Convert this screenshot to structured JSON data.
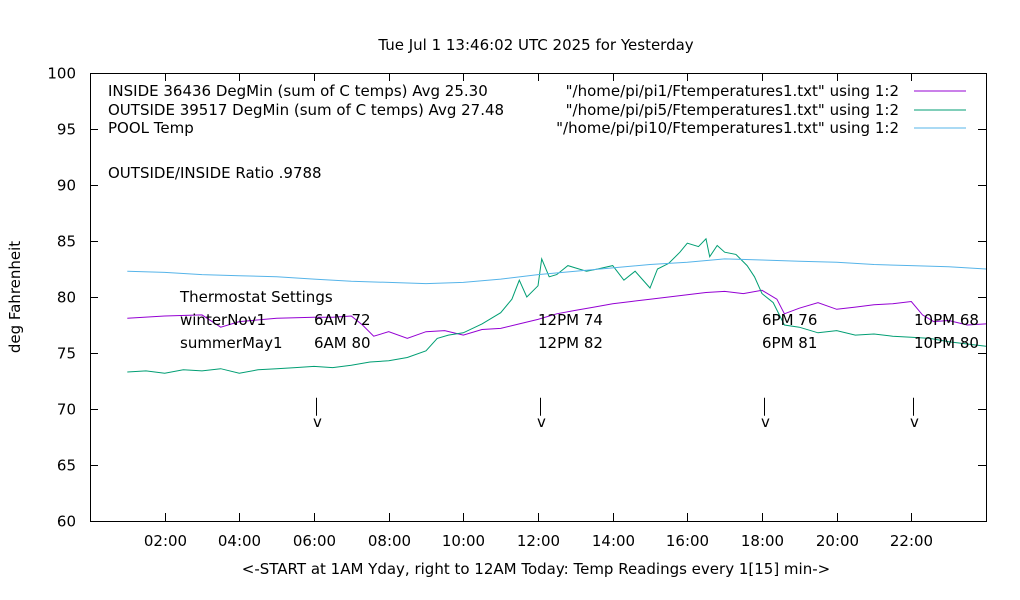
{
  "chart_data": {
    "type": "line",
    "title": "Tue Jul  1 13:46:02 UTC 2025 for Yesterday",
    "xlabel": "<-START at 1AM Yday, right to 12AM Today:  Temp Readings every 1[15] min->",
    "ylabel": "deg Fahrenheit",
    "ylim": [
      60,
      100
    ],
    "xlim": [
      0,
      24
    ],
    "grid": false,
    "legend_position": "top-right",
    "y_ticks": [
      60,
      65,
      70,
      75,
      80,
      85,
      90,
      95,
      100
    ],
    "x_ticks": [
      {
        "x": 2,
        "label": "02:00"
      },
      {
        "x": 4,
        "label": "04:00"
      },
      {
        "x": 6,
        "label": "06:00"
      },
      {
        "x": 8,
        "label": "08:00"
      },
      {
        "x": 10,
        "label": "10:00"
      },
      {
        "x": 12,
        "label": "12:00"
      },
      {
        "x": 14,
        "label": "14:00"
      },
      {
        "x": 16,
        "label": "16:00"
      },
      {
        "x": 18,
        "label": "18:00"
      },
      {
        "x": 20,
        "label": "20:00"
      },
      {
        "x": 22,
        "label": "22:00"
      }
    ],
    "series": [
      {
        "name": "INSIDE 36436 DegMin (sum of C temps) Avg 25.30",
        "legend_file": "\"/home/pi/pi1/Ftemperatures1.txt\" using 1:2",
        "color": "#9400d3",
        "x": [
          1.0,
          2.0,
          3.0,
          3.5,
          4.0,
          5.0,
          6.0,
          6.5,
          7.0,
          7.3,
          7.6,
          8.0,
          8.5,
          9.0,
          9.5,
          10.0,
          10.5,
          11.0,
          11.5,
          12.0,
          12.5,
          13.0,
          13.5,
          14.0,
          14.5,
          15.0,
          15.5,
          16.0,
          16.5,
          17.0,
          17.5,
          18.0,
          18.4,
          18.6,
          19.0,
          19.5,
          20.0,
          20.5,
          21.0,
          21.5,
          22.0,
          22.3,
          22.6,
          23.0,
          23.5,
          24.0
        ],
        "y": [
          78.1,
          78.3,
          78.4,
          77.3,
          77.8,
          78.1,
          78.2,
          78.2,
          78.3,
          77.5,
          76.5,
          76.9,
          76.3,
          76.9,
          77.0,
          76.6,
          77.1,
          77.2,
          77.6,
          78.0,
          78.5,
          78.8,
          79.1,
          79.4,
          79.6,
          79.8,
          80.0,
          80.2,
          80.4,
          80.5,
          80.3,
          80.6,
          79.8,
          78.5,
          79.0,
          79.5,
          78.9,
          79.1,
          79.3,
          79.4,
          79.6,
          78.4,
          77.8,
          77.9,
          77.5,
          77.6
        ]
      },
      {
        "name": "OUTSIDE 39517 DegMin (sum of C temps) Avg 27.48",
        "legend_file": "\"/home/pi/pi5/Ftemperatures1.txt\" using 1:2",
        "color": "#009e73",
        "x": [
          1.0,
          1.5,
          2.0,
          2.5,
          3.0,
          3.5,
          4.0,
          4.5,
          5.0,
          5.5,
          6.0,
          6.5,
          7.0,
          7.5,
          8.0,
          8.5,
          9.0,
          9.3,
          9.6,
          10.0,
          10.5,
          11.0,
          11.3,
          11.5,
          11.7,
          12.0,
          12.1,
          12.3,
          12.5,
          12.8,
          13.0,
          13.3,
          13.6,
          14.0,
          14.3,
          14.6,
          15.0,
          15.2,
          15.5,
          15.8,
          16.0,
          16.3,
          16.5,
          16.6,
          16.8,
          17.0,
          17.3,
          17.6,
          17.8,
          18.0,
          18.3,
          18.6,
          19.0,
          19.5,
          20.0,
          20.5,
          21.0,
          21.5,
          22.0,
          22.5,
          23.0,
          23.5,
          24.0
        ],
        "y": [
          73.3,
          73.4,
          73.2,
          73.5,
          73.4,
          73.6,
          73.2,
          73.5,
          73.6,
          73.7,
          73.8,
          73.7,
          73.9,
          74.2,
          74.3,
          74.6,
          75.2,
          76.3,
          76.6,
          76.8,
          77.6,
          78.6,
          79.8,
          81.5,
          80.0,
          81.0,
          83.4,
          81.8,
          82.0,
          82.8,
          82.6,
          82.3,
          82.5,
          82.8,
          81.5,
          82.3,
          80.8,
          82.5,
          83.0,
          84.0,
          84.8,
          84.5,
          85.2,
          83.6,
          84.6,
          84.0,
          83.8,
          82.8,
          81.8,
          80.3,
          79.5,
          77.5,
          77.3,
          76.8,
          77.0,
          76.6,
          76.7,
          76.5,
          76.4,
          76.3,
          76.0,
          75.8,
          75.6
        ]
      },
      {
        "name": "POOL Temp",
        "legend_file": "\"/home/pi/pi10/Ftemperatures1.txt\" using 1:2",
        "color": "#56b4e9",
        "x": [
          1.0,
          2.0,
          3.0,
          4.0,
          5.0,
          6.0,
          7.0,
          8.0,
          9.0,
          10.0,
          11.0,
          12.0,
          13.0,
          14.0,
          15.0,
          16.0,
          17.0,
          18.0,
          19.0,
          20.0,
          21.0,
          22.0,
          23.0,
          24.0
        ],
        "y": [
          82.3,
          82.2,
          82.0,
          81.9,
          81.8,
          81.6,
          81.4,
          81.3,
          81.2,
          81.3,
          81.6,
          82.0,
          82.3,
          82.6,
          82.9,
          83.1,
          83.4,
          83.3,
          83.2,
          83.1,
          82.9,
          82.8,
          82.7,
          82.5
        ]
      }
    ],
    "annotations": {
      "ratio_text": "OUTSIDE/INSIDE Ratio .9788",
      "thermostat_title": "Thermostat Settings",
      "rows": [
        {
          "label": "winterNov1",
          "values": [
            "6AM 72",
            "12PM 74",
            "6PM 76",
            "10PM 68"
          ]
        },
        {
          "label": "summerMay1",
          "values": [
            "6AM 80",
            "12PM 82",
            "6PM 81",
            "10PM 80"
          ]
        }
      ],
      "arrow_times": [
        6.1,
        12.1,
        18.1,
        22.1
      ],
      "arrow_glyph": "v"
    }
  }
}
